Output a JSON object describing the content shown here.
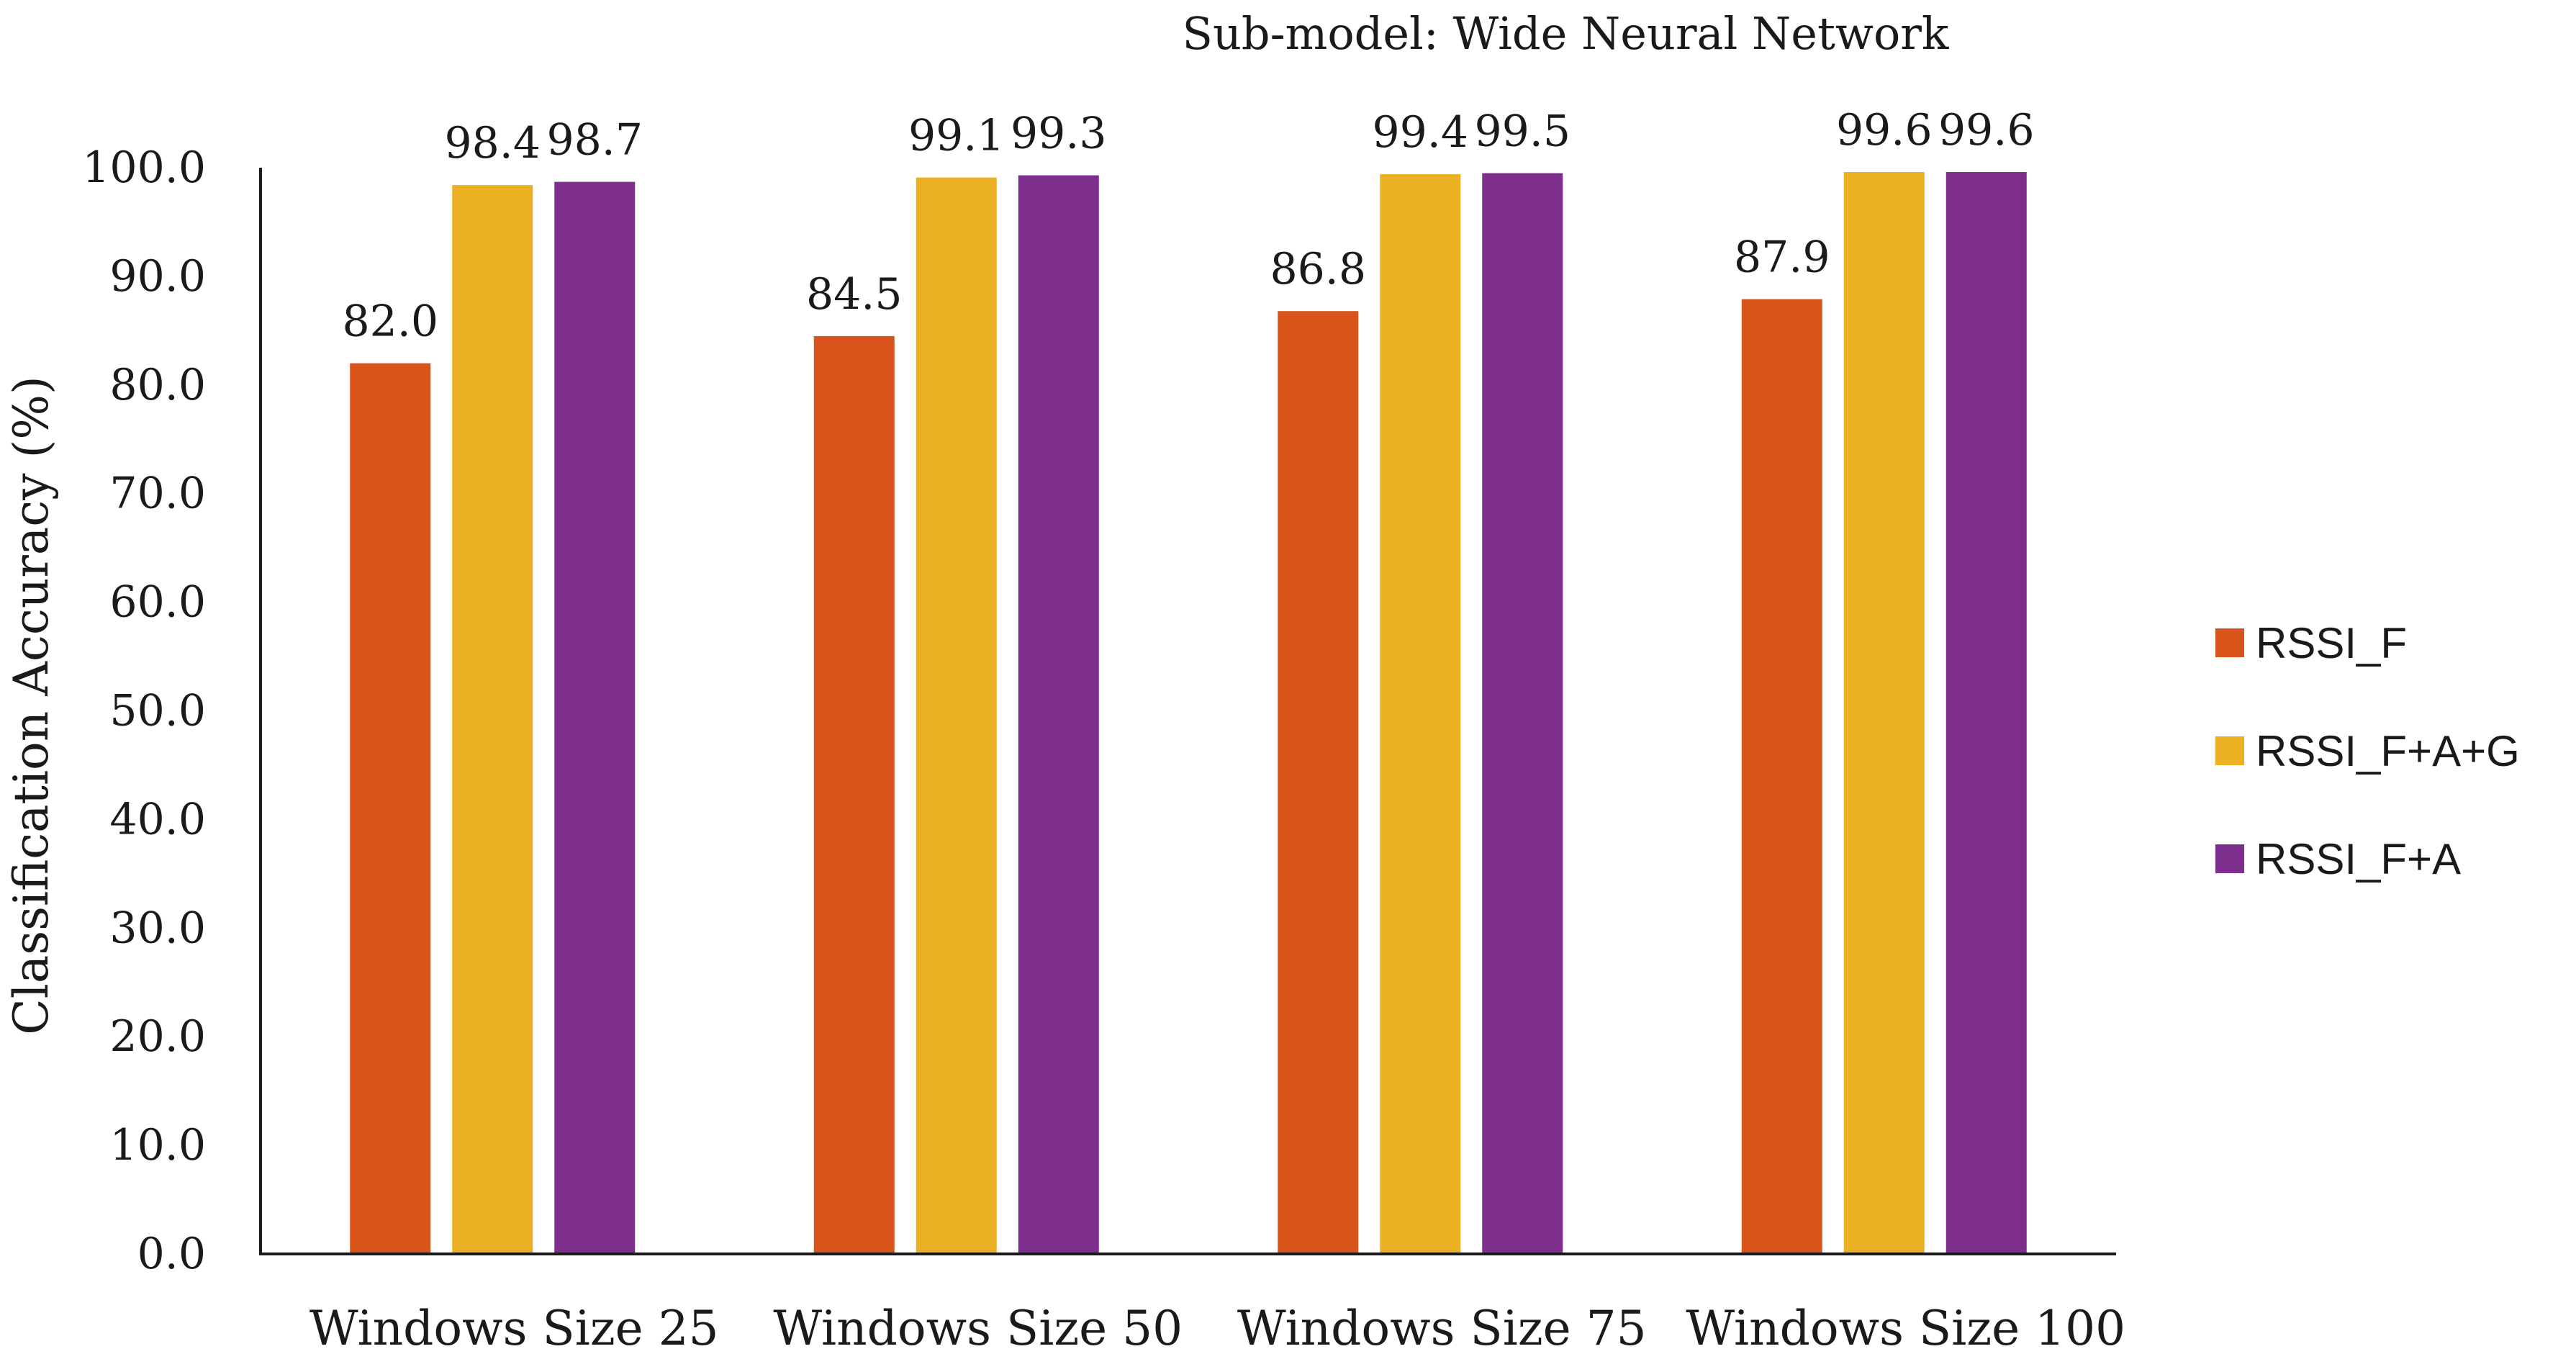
{
  "chart_data": {
    "type": "bar",
    "title": "Sub-model: Wide Neural Network",
    "xlabel": "",
    "ylabel": "Classification Accuracy (%)",
    "ylim": [
      0,
      100
    ],
    "yticks": [
      "0.0",
      "10.0",
      "20.0",
      "30.0",
      "40.0",
      "50.0",
      "60.0",
      "70.0",
      "80.0",
      "90.0",
      "100.0"
    ],
    "categories": [
      "Windows Size 25",
      "Windows Size 50",
      "Windows Size 75",
      "Windows Size 100"
    ],
    "series": [
      {
        "name": "RSSI_F",
        "color": "#d9541a",
        "values": [
          82.0,
          84.5,
          86.8,
          87.9
        ],
        "labels": [
          "82.0",
          "84.5",
          "86.8",
          "87.9"
        ]
      },
      {
        "name": "RSSI_F+A+G",
        "color": "#ebb023",
        "values": [
          98.4,
          99.1,
          99.4,
          99.6
        ],
        "labels": [
          "98.4",
          "99.1",
          "99.4",
          "99.6"
        ]
      },
      {
        "name": "RSSI_F+A",
        "color": "#7e2f8e",
        "values": [
          98.7,
          99.3,
          99.5,
          99.6
        ],
        "labels": [
          "98.7",
          "99.3",
          "99.5",
          "99.6"
        ]
      }
    ],
    "grid": false,
    "legend_position": "right"
  }
}
